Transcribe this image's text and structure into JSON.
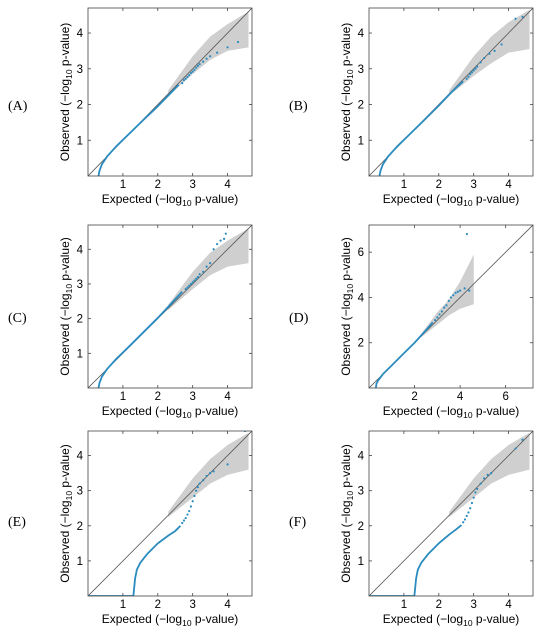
{
  "figure": {
    "background": "#ffffff",
    "series_color": "#2a8bbf",
    "band_color": "#cfcfcf",
    "line_color": "#555555"
  },
  "chart_data": [
    {
      "panel_label": "(A)",
      "type": "scatter",
      "xlabel": "Expected (−log",
      "xlabel_sub": "10",
      "xlabel_tail": " p-value)",
      "ylabel": "Observed (−log",
      "ylabel_sub": "10",
      "ylabel_tail": " p-value)",
      "xlim": [
        0,
        4.7
      ],
      "ylim": [
        0,
        4.7
      ],
      "xticks": [
        1,
        2,
        3,
        4
      ],
      "yticks": [
        1,
        2,
        3,
        4
      ],
      "diagonal": true,
      "confidence_band": true,
      "band_xmax": 4.6,
      "band_upper": [
        [
          2.3,
          2.4
        ],
        [
          3.0,
          3.35
        ],
        [
          3.5,
          3.9
        ],
        [
          4.0,
          4.25
        ],
        [
          4.6,
          4.6
        ]
      ],
      "band_lower": [
        [
          2.3,
          2.25
        ],
        [
          3.0,
          2.85
        ],
        [
          3.5,
          3.25
        ],
        [
          4.0,
          3.5
        ],
        [
          4.6,
          3.6
        ]
      ],
      "curve": [
        [
          0.3,
          0.0
        ],
        [
          0.33,
          0.15
        ],
        [
          0.4,
          0.33
        ],
        [
          0.55,
          0.55
        ],
        [
          0.8,
          0.82
        ],
        [
          1.2,
          1.2
        ],
        [
          1.6,
          1.58
        ],
        [
          2.0,
          1.95
        ],
        [
          2.4,
          2.35
        ],
        [
          2.6,
          2.55
        ]
      ],
      "points": [
        [
          2.7,
          2.6
        ],
        [
          2.75,
          2.68
        ],
        [
          2.8,
          2.72
        ],
        [
          2.85,
          2.77
        ],
        [
          2.9,
          2.82
        ],
        [
          2.95,
          2.88
        ],
        [
          3.0,
          2.92
        ],
        [
          3.05,
          2.97
        ],
        [
          3.1,
          3.03
        ],
        [
          3.15,
          3.08
        ],
        [
          3.2,
          3.13
        ],
        [
          3.3,
          3.2
        ],
        [
          3.4,
          3.28
        ],
        [
          3.5,
          3.35
        ],
        [
          3.7,
          3.45
        ],
        [
          4.0,
          3.6
        ],
        [
          4.3,
          3.75
        ]
      ]
    },
    {
      "panel_label": "(B)",
      "type": "scatter",
      "xlabel": "Expected (−log",
      "xlabel_sub": "10",
      "xlabel_tail": " p-value)",
      "ylabel": "Observed (−log",
      "ylabel_sub": "10",
      "ylabel_tail": " p-value)",
      "xlim": [
        0,
        4.7
      ],
      "ylim": [
        0,
        4.7
      ],
      "xticks": [
        1,
        2,
        3,
        4
      ],
      "yticks": [
        1,
        2,
        3,
        4
      ],
      "diagonal": true,
      "confidence_band": true,
      "band_xmax": 4.6,
      "band_upper": [
        [
          2.3,
          2.4
        ],
        [
          3.0,
          3.35
        ],
        [
          3.5,
          3.9
        ],
        [
          4.0,
          4.3
        ],
        [
          4.6,
          4.65
        ]
      ],
      "band_lower": [
        [
          2.3,
          2.25
        ],
        [
          3.0,
          2.8
        ],
        [
          3.5,
          3.15
        ],
        [
          4.0,
          3.45
        ],
        [
          4.6,
          3.55
        ]
      ],
      "curve": [
        [
          0.3,
          0.0
        ],
        [
          0.33,
          0.15
        ],
        [
          0.4,
          0.33
        ],
        [
          0.55,
          0.55
        ],
        [
          0.8,
          0.82
        ],
        [
          1.2,
          1.2
        ],
        [
          1.6,
          1.58
        ],
        [
          2.0,
          1.97
        ],
        [
          2.4,
          2.38
        ],
        [
          2.7,
          2.65
        ]
      ],
      "points": [
        [
          2.8,
          2.72
        ],
        [
          2.85,
          2.78
        ],
        [
          2.9,
          2.85
        ],
        [
          2.95,
          2.9
        ],
        [
          3.0,
          2.95
        ],
        [
          3.05,
          3.0
        ],
        [
          3.1,
          3.06
        ],
        [
          3.2,
          3.18
        ],
        [
          3.3,
          3.3
        ],
        [
          3.45,
          3.42
        ],
        [
          3.6,
          3.5
        ],
        [
          3.8,
          3.68
        ],
        [
          4.2,
          4.4
        ],
        [
          4.4,
          4.45
        ]
      ]
    },
    {
      "panel_label": "(C)",
      "type": "scatter",
      "xlabel": "Expected (−log",
      "xlabel_sub": "10",
      "xlabel_tail": " p-value)",
      "ylabel": "Observed (−log",
      "ylabel_sub": "10",
      "ylabel_tail": " p-value)",
      "xlim": [
        0,
        4.7
      ],
      "ylim": [
        0,
        4.7
      ],
      "xticks": [
        1,
        2,
        3,
        4
      ],
      "yticks": [
        1,
        2,
        3,
        4
      ],
      "diagonal": true,
      "confidence_band": true,
      "band_xmax": 4.6,
      "band_upper": [
        [
          2.3,
          2.4
        ],
        [
          3.0,
          3.35
        ],
        [
          3.5,
          3.9
        ],
        [
          4.0,
          4.25
        ],
        [
          4.6,
          4.6
        ]
      ],
      "band_lower": [
        [
          2.3,
          2.25
        ],
        [
          3.0,
          2.85
        ],
        [
          3.5,
          3.25
        ],
        [
          4.0,
          3.5
        ],
        [
          4.6,
          3.6
        ]
      ],
      "curve": [
        [
          0.3,
          0.0
        ],
        [
          0.33,
          0.15
        ],
        [
          0.4,
          0.33
        ],
        [
          0.55,
          0.55
        ],
        [
          0.8,
          0.83
        ],
        [
          1.2,
          1.22
        ],
        [
          1.6,
          1.62
        ],
        [
          2.0,
          2.02
        ],
        [
          2.4,
          2.45
        ],
        [
          2.7,
          2.78
        ]
      ],
      "points": [
        [
          2.8,
          2.85
        ],
        [
          2.85,
          2.9
        ],
        [
          2.9,
          2.95
        ],
        [
          2.95,
          3.0
        ],
        [
          3.0,
          3.05
        ],
        [
          3.05,
          3.1
        ],
        [
          3.1,
          3.15
        ],
        [
          3.15,
          3.2
        ],
        [
          3.2,
          3.28
        ],
        [
          3.3,
          3.35
        ],
        [
          3.4,
          3.5
        ],
        [
          3.5,
          3.6
        ],
        [
          3.6,
          4.0
        ],
        [
          3.7,
          4.15
        ],
        [
          3.8,
          4.25
        ],
        [
          3.9,
          4.3
        ],
        [
          3.95,
          4.45
        ]
      ]
    },
    {
      "panel_label": "(D)",
      "type": "scatter",
      "xlabel": "Expected (−log",
      "xlabel_sub": "10",
      "xlabel_tail": " p-value)",
      "ylabel": "Observed (−log",
      "ylabel_sub": "10",
      "ylabel_tail": " p-value)",
      "xlim": [
        0,
        7.2
      ],
      "ylim": [
        0,
        7.2
      ],
      "xticks": [
        2,
        4,
        6
      ],
      "yticks": [
        2,
        4,
        6
      ],
      "diagonal": true,
      "confidence_band": true,
      "band_xmax": 4.6,
      "band_upper": [
        [
          2.3,
          2.4
        ],
        [
          3.0,
          3.35
        ],
        [
          3.5,
          3.9
        ],
        [
          4.0,
          4.7
        ],
        [
          4.6,
          5.9
        ]
      ],
      "band_lower": [
        [
          2.3,
          2.25
        ],
        [
          3.0,
          2.8
        ],
        [
          3.5,
          3.2
        ],
        [
          4.0,
          3.5
        ],
        [
          4.6,
          3.7
        ]
      ],
      "curve": [
        [
          0.3,
          0.0
        ],
        [
          0.33,
          0.2
        ],
        [
          0.4,
          0.33
        ],
        [
          0.6,
          0.6
        ],
        [
          1.0,
          1.0
        ],
        [
          1.5,
          1.5
        ],
        [
          2.0,
          2.0
        ],
        [
          2.5,
          2.55
        ],
        [
          2.8,
          2.9
        ]
      ],
      "points": [
        [
          2.9,
          3.0
        ],
        [
          3.0,
          3.12
        ],
        [
          3.1,
          3.25
        ],
        [
          3.2,
          3.38
        ],
        [
          3.3,
          3.55
        ],
        [
          3.4,
          3.65
        ],
        [
          3.5,
          3.85
        ],
        [
          3.6,
          4.0
        ],
        [
          3.7,
          4.1
        ],
        [
          3.8,
          4.2
        ],
        [
          3.9,
          4.25
        ],
        [
          4.0,
          4.3
        ],
        [
          4.2,
          4.4
        ],
        [
          4.4,
          4.3
        ],
        [
          4.3,
          6.8
        ]
      ]
    },
    {
      "panel_label": "(E)",
      "type": "scatter",
      "xlabel": "Expected (−log",
      "xlabel_sub": "10",
      "xlabel_tail": " p-value)",
      "ylabel": "Observed (−log",
      "ylabel_sub": "10",
      "ylabel_tail": " p-value)",
      "xlim": [
        0,
        4.7
      ],
      "ylim": [
        0,
        4.7
      ],
      "xticks": [
        1,
        2,
        3,
        4
      ],
      "yticks": [
        1,
        2,
        3,
        4
      ],
      "diagonal": true,
      "confidence_band": true,
      "band_xmax": 4.6,
      "band_upper": [
        [
          2.3,
          2.4
        ],
        [
          3.0,
          3.35
        ],
        [
          3.5,
          3.9
        ],
        [
          4.0,
          4.3
        ],
        [
          4.6,
          4.65
        ]
      ],
      "band_lower": [
        [
          2.3,
          2.25
        ],
        [
          3.0,
          2.8
        ],
        [
          3.5,
          3.2
        ],
        [
          4.0,
          3.45
        ],
        [
          4.6,
          3.6
        ]
      ],
      "curve": [
        [
          0.0,
          0.0
        ],
        [
          1.3,
          0.0
        ],
        [
          1.32,
          0.2
        ],
        [
          1.35,
          0.5
        ],
        [
          1.4,
          0.75
        ],
        [
          1.5,
          0.95
        ],
        [
          1.7,
          1.2
        ],
        [
          2.0,
          1.5
        ],
        [
          2.3,
          1.72
        ],
        [
          2.5,
          1.85
        ],
        [
          2.65,
          2.0
        ]
      ],
      "points": [
        [
          2.7,
          2.08
        ],
        [
          2.75,
          2.15
        ],
        [
          2.8,
          2.22
        ],
        [
          2.85,
          2.32
        ],
        [
          2.9,
          2.42
        ],
        [
          2.95,
          2.55
        ],
        [
          3.0,
          2.7
        ],
        [
          3.05,
          2.85
        ],
        [
          3.1,
          3.0
        ],
        [
          3.15,
          3.1
        ],
        [
          3.2,
          3.2
        ],
        [
          3.3,
          3.3
        ],
        [
          3.4,
          3.42
        ],
        [
          3.5,
          3.5
        ],
        [
          3.6,
          3.55
        ],
        [
          4.0,
          3.75
        ],
        [
          4.5,
          4.7
        ]
      ]
    },
    {
      "panel_label": "(F)",
      "type": "scatter",
      "xlabel": "Expected (−log",
      "xlabel_sub": "10",
      "xlabel_tail": " p-value)",
      "ylabel": "Observed (−log",
      "ylabel_sub": "10",
      "ylabel_tail": " p-value)",
      "xlim": [
        0,
        4.7
      ],
      "ylim": [
        0,
        4.7
      ],
      "xticks": [
        1,
        2,
        3,
        4
      ],
      "yticks": [
        1,
        2,
        3,
        4
      ],
      "diagonal": true,
      "confidence_band": true,
      "band_xmax": 4.6,
      "band_upper": [
        [
          2.3,
          2.4
        ],
        [
          3.0,
          3.35
        ],
        [
          3.5,
          3.9
        ],
        [
          4.0,
          4.3
        ],
        [
          4.6,
          4.65
        ]
      ],
      "band_lower": [
        [
          2.3,
          2.25
        ],
        [
          3.0,
          2.8
        ],
        [
          3.5,
          3.2
        ],
        [
          4.0,
          3.45
        ],
        [
          4.6,
          3.6
        ]
      ],
      "curve": [
        [
          0.0,
          0.0
        ],
        [
          1.3,
          0.0
        ],
        [
          1.32,
          0.2
        ],
        [
          1.35,
          0.5
        ],
        [
          1.4,
          0.75
        ],
        [
          1.5,
          0.95
        ],
        [
          1.7,
          1.2
        ],
        [
          2.0,
          1.5
        ],
        [
          2.3,
          1.75
        ],
        [
          2.5,
          1.9
        ],
        [
          2.65,
          2.02
        ]
      ],
      "points": [
        [
          2.7,
          2.1
        ],
        [
          2.75,
          2.18
        ],
        [
          2.8,
          2.28
        ],
        [
          2.85,
          2.38
        ],
        [
          2.9,
          2.5
        ],
        [
          2.95,
          2.65
        ],
        [
          3.0,
          2.8
        ],
        [
          3.05,
          2.95
        ],
        [
          3.1,
          3.05
        ],
        [
          3.2,
          3.2
        ],
        [
          3.3,
          3.35
        ],
        [
          3.4,
          3.45
        ],
        [
          3.5,
          3.5
        ],
        [
          4.2,
          4.2
        ],
        [
          4.4,
          4.45
        ]
      ]
    }
  ]
}
